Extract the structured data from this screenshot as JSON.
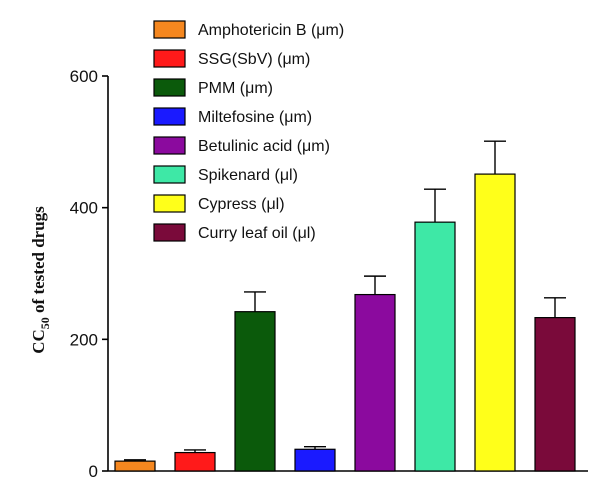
{
  "chart_data": {
    "type": "bar",
    "categories": [
      "Amphotericin B (μm)",
      "SSG(SbV)  (μm)",
      "PMM (μm)",
      "Miltefosine (μm)",
      "Betulinic acid (μm)",
      "Spikenard (μl)",
      "Cypress (μl)",
      "Curry leaf oil  (μl)"
    ],
    "values": [
      15,
      28,
      242,
      33,
      268,
      378,
      451,
      233
    ],
    "errors": [
      2,
      4,
      30,
      4,
      28,
      50,
      50,
      30
    ],
    "colors": [
      "#f5871f",
      "#ff1a1a",
      "#0b5a0b",
      "#1a1aff",
      "#8b0a9e",
      "#3ee8a6",
      "#ffff1a",
      "#7a0a3a"
    ],
    "ylabel_main": "CC",
    "ylabel_sub": "50",
    "ylabel_rest": " of tested drugs",
    "ylim": [
      0,
      600
    ],
    "yticks": [
      0,
      200,
      400,
      600
    ],
    "legend_position": "top-center",
    "grid": false
  }
}
